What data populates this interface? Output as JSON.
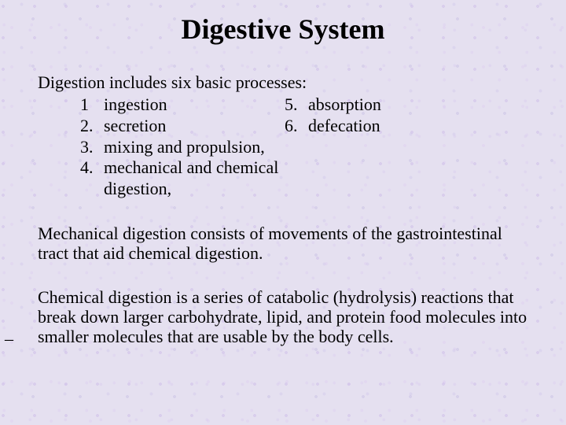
{
  "background_color": "#e5e0f0",
  "text_color": "#000000",
  "font_family": "Times New Roman",
  "title": "Digestive System",
  "title_fontsize": 36,
  "body_fontsize": 22,
  "lead": "Digestion includes six basic processes:",
  "items": {
    "n1": "1",
    "l1": "ingestion",
    "n2": "2.",
    "l2": "secretion",
    "n3": "3.",
    "l3": "mixing and propulsion,",
    "n4": "4.",
    "l4": "mechanical and chemical digestion,",
    "n5": "5.",
    "l5": "absorption",
    "n6": "6.",
    "l6": "defecation"
  },
  "para1": "Mechanical digestion consists of movements of the gastrointestinal tract that aid chemical digestion.",
  "para2": "Chemical digestion is a series of catabolic (hydrolysis) reactions that break down larger carbohydrate, lipid, and protein food molecules into smaller molecules that are usable by the body cells.",
  "marker": "_"
}
